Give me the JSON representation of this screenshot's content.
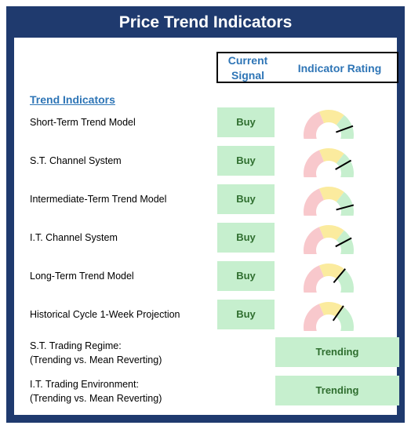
{
  "title": "Price Trend Indicators",
  "header": {
    "current_signal": "Current Signal",
    "indicator_rating": "Indicator Rating"
  },
  "section": "Trend Indicators",
  "indicators": [
    {
      "label": "Short-Term Trend Model",
      "signal": "Buy",
      "rating_angle_deg": 160
    },
    {
      "label": "S.T. Channel System",
      "signal": "Buy",
      "rating_angle_deg": 150
    },
    {
      "label": "Intermediate-Term Trend Model",
      "signal": "Buy",
      "rating_angle_deg": 165
    },
    {
      "label": "I.T. Channel System",
      "signal": "Buy",
      "rating_angle_deg": 152
    },
    {
      "label": "Long-Term Trend Model",
      "signal": "Buy",
      "rating_angle_deg": 130
    },
    {
      "label": "Historical Cycle  1-Week Projection",
      "signal": "Buy",
      "rating_angle_deg": 125
    }
  ],
  "regimes": [
    {
      "line1": "S.T. Trading Regime:",
      "line2": "(Trending vs. Mean Reverting)",
      "value": "Trending"
    },
    {
      "line1": "I.T. Trading Environment:",
      "line2": "(Trending vs. Mean Reverting)",
      "value": "Trending"
    }
  ],
  "colors": {
    "frame": "#1f3a6e",
    "header_text": "#2e75b6",
    "buy_bg": "#c6efce",
    "buy_text": "#2f6e2f",
    "gauge_red": "#f8c8cc",
    "gauge_yellow": "#fbeb9e",
    "gauge_green": "#c6efce"
  }
}
